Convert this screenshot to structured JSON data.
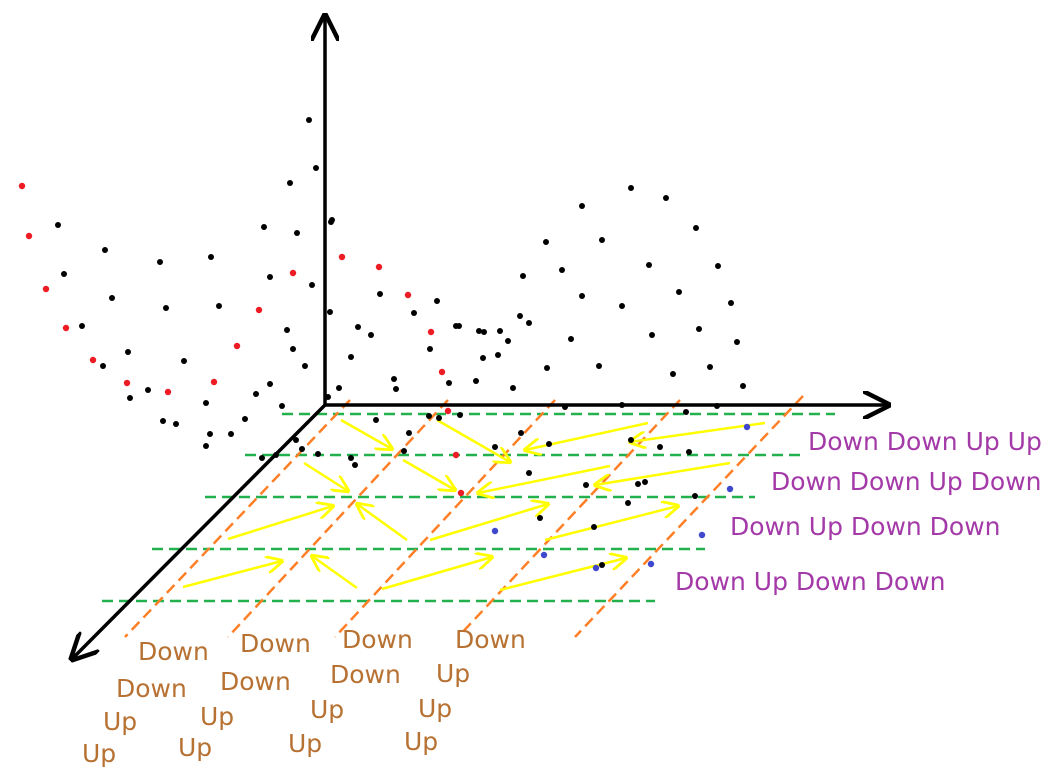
{
  "colors": {
    "axis": "#000000",
    "grid_rows": "#22b14c",
    "grid_cols": "#ff7f27",
    "arrows": "#ffff00",
    "row_labels": "#a33aa8",
    "col_labels": "#b77233",
    "black_points": "#000000",
    "red_points": "#ed1c24",
    "blue_points": "#3f48cc"
  },
  "row_labels": [
    "Down Down Up Up",
    "Down Down Up Down",
    "Down Up Down Down",
    "Down Up Down Down"
  ],
  "column_labels": [
    [
      "Down",
      "Down",
      "Up",
      "Up"
    ],
    [
      "Down",
      "Down",
      "Up",
      "Up"
    ],
    [
      "Down",
      "Down",
      "Up",
      "Up"
    ],
    [
      "Down",
      "Up",
      "Up",
      "Up"
    ]
  ],
  "point_groups": [
    "black",
    "red",
    "blue"
  ]
}
